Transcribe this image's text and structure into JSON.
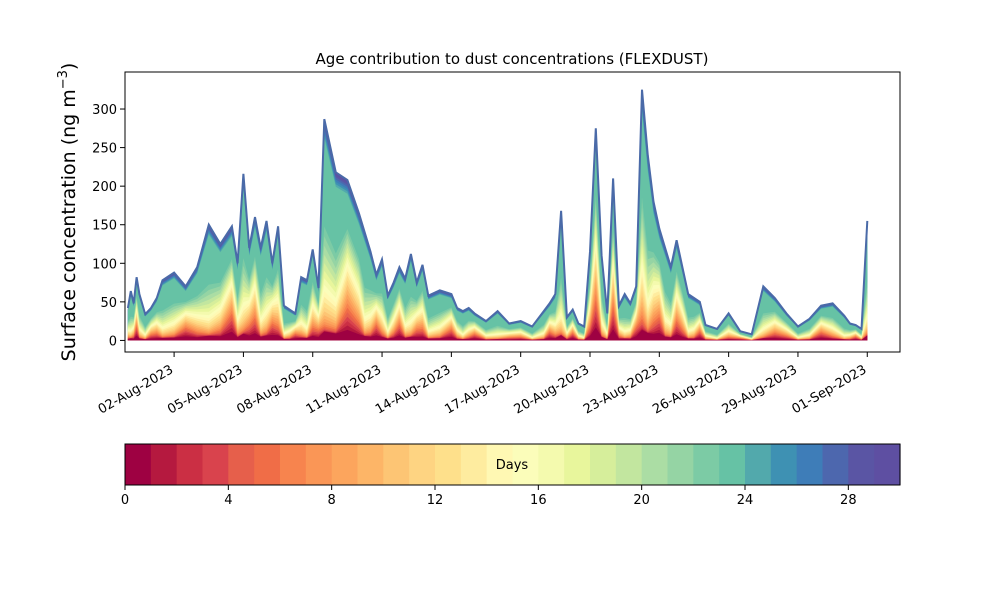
{
  "chart_data": {
    "type": "area",
    "stacked": true,
    "title": "Age contribution to dust concentrations (FLEXDUST)",
    "ylabel": "Surface concentration (ng m−3)",
    "ylabel_main": "Surface concentration (ng m",
    "ylabel_sup": "−3",
    "ylabel_close": ")",
    "xlabel": "",
    "ylim": [
      -15,
      348
    ],
    "yticks": [
      0,
      50,
      100,
      150,
      200,
      250,
      300
    ],
    "x_tick_labels": [
      "02-Aug-2023",
      "05-Aug-2023",
      "08-Aug-2023",
      "11-Aug-2023",
      "14-Aug-2023",
      "17-Aug-2023",
      "20-Aug-2023",
      "23-Aug-2023",
      "26-Aug-2023",
      "29-Aug-2023",
      "01-Sep-2023"
    ],
    "x_tick_dates": [
      "2023-08-02",
      "2023-08-05",
      "2023-08-08",
      "2023-08-11",
      "2023-08-14",
      "2023-08-17",
      "2023-08-20",
      "2023-08-23",
      "2023-08-26",
      "2023-08-29",
      "2023-09-01"
    ],
    "xlim": [
      "2023-07-30T21:00",
      "2023-09-02T10:00"
    ],
    "total": {
      "x": [
        "2023-07-31T00:00",
        "2023-07-31T03:00",
        "2023-07-31T06:00",
        "2023-07-31T09:00",
        "2023-07-31T12:00",
        "2023-07-31T18:00",
        "2023-08-01T00:00",
        "2023-08-01T06:00",
        "2023-08-01T12:00",
        "2023-08-02T00:00",
        "2023-08-02T12:00",
        "2023-08-03T00:00",
        "2023-08-03T12:00",
        "2023-08-04T00:00",
        "2023-08-04T12:00",
        "2023-08-04T18:00",
        "2023-08-05T00:00",
        "2023-08-05T06:00",
        "2023-08-05T12:00",
        "2023-08-05T18:00",
        "2023-08-06T00:00",
        "2023-08-06T06:00",
        "2023-08-06T12:00",
        "2023-08-06T18:00",
        "2023-08-07T00:00",
        "2023-08-07T06:00",
        "2023-08-07T12:00",
        "2023-08-07T18:00",
        "2023-08-08T00:00",
        "2023-08-08T06:00",
        "2023-08-08T12:00",
        "2023-08-09T00:00",
        "2023-08-09T12:00",
        "2023-08-10T00:00",
        "2023-08-10T06:00",
        "2023-08-10T12:00",
        "2023-08-10T18:00",
        "2023-08-11T00:00",
        "2023-08-11T06:00",
        "2023-08-11T12:00",
        "2023-08-11T18:00",
        "2023-08-12T00:00",
        "2023-08-12T06:00",
        "2023-08-12T12:00",
        "2023-08-12T18:00",
        "2023-08-13T00:00",
        "2023-08-13T12:00",
        "2023-08-14T00:00",
        "2023-08-14T06:00",
        "2023-08-14T12:00",
        "2023-08-14T18:00",
        "2023-08-15T00:00",
        "2023-08-15T12:00",
        "2023-08-16T00:00",
        "2023-08-16T12:00",
        "2023-08-17T00:00",
        "2023-08-17T12:00",
        "2023-08-18T00:00",
        "2023-08-18T06:00",
        "2023-08-18T12:00",
        "2023-08-18T18:00",
        "2023-08-19T00:00",
        "2023-08-19T06:00",
        "2023-08-19T12:00",
        "2023-08-19T18:00",
        "2023-08-20T00:00",
        "2023-08-20T06:00",
        "2023-08-20T12:00",
        "2023-08-20T18:00",
        "2023-08-21T00:00",
        "2023-08-21T06:00",
        "2023-08-21T12:00",
        "2023-08-21T18:00",
        "2023-08-22T00:00",
        "2023-08-22T06:00",
        "2023-08-22T12:00",
        "2023-08-22T18:00",
        "2023-08-23T00:00",
        "2023-08-23T06:00",
        "2023-08-23T12:00",
        "2023-08-23T18:00",
        "2023-08-24T00:00",
        "2023-08-24T06:00",
        "2023-08-24T12:00",
        "2023-08-24T18:00",
        "2023-08-25T00:00",
        "2023-08-25T12:00",
        "2023-08-26T00:00",
        "2023-08-26T12:00",
        "2023-08-27T00:00",
        "2023-08-27T12:00",
        "2023-08-28T00:00",
        "2023-08-28T12:00",
        "2023-08-29T00:00",
        "2023-08-29T12:00",
        "2023-08-30T00:00",
        "2023-08-30T12:00",
        "2023-08-31T00:00",
        "2023-08-31T06:00",
        "2023-08-31T12:00",
        "2023-08-31T18:00",
        "2023-09-01T00:00"
      ],
      "y": [
        42,
        64,
        48,
        82,
        60,
        34,
        42,
        55,
        78,
        88,
        70,
        95,
        150,
        125,
        148,
        100,
        216,
        120,
        160,
        120,
        155,
        100,
        148,
        45,
        40,
        35,
        82,
        78,
        118,
        68,
        287,
        218,
        208,
        165,
        140,
        115,
        85,
        105,
        58,
        75,
        95,
        80,
        112,
        75,
        98,
        58,
        65,
        60,
        42,
        38,
        42,
        35,
        25,
        38,
        22,
        25,
        18,
        38,
        48,
        60,
        168,
        30,
        40,
        22,
        18,
        115,
        275,
        110,
        35,
        210,
        45,
        60,
        48,
        70,
        325,
        240,
        180,
        145,
        120,
        95,
        130,
        95,
        60,
        55,
        50,
        20,
        15,
        35,
        12,
        8,
        70,
        55,
        35,
        18,
        28,
        45,
        48,
        32,
        22,
        20,
        15,
        155
      ]
    },
    "layers_note": "Stacked layers by particle age, 0–30 days; oldest age bins (blue/green) form a thin band along the top of the total.",
    "colorbar": {
      "label": "Days",
      "min": 0,
      "max": 30,
      "bins": 30,
      "ticks": [
        0,
        4,
        8,
        12,
        16,
        20,
        24,
        28
      ],
      "colormap": "Spectral",
      "colors": [
        "#9e0142",
        "#b5193f",
        "#cb2f44",
        "#d9434d",
        "#e65f4b",
        "#f06d47",
        "#f7844e",
        "#fa9656",
        "#fca55d",
        "#fdb567",
        "#fdc574",
        "#fed482",
        "#fee08b",
        "#feec9f",
        "#fff8b3",
        "#fbfdba",
        "#f4faae",
        "#e8f69c",
        "#d6ee9b",
        "#c2e69f",
        "#abdda4",
        "#95d4a4",
        "#7ccba5",
        "#66c2a5",
        "#52a9ac",
        "#3e91b3",
        "#3e7db8",
        "#4d67ae",
        "#5a55a4",
        "#5e4fa2"
      ]
    },
    "line_color": "#4a6aa8",
    "legend_placement": "below"
  }
}
